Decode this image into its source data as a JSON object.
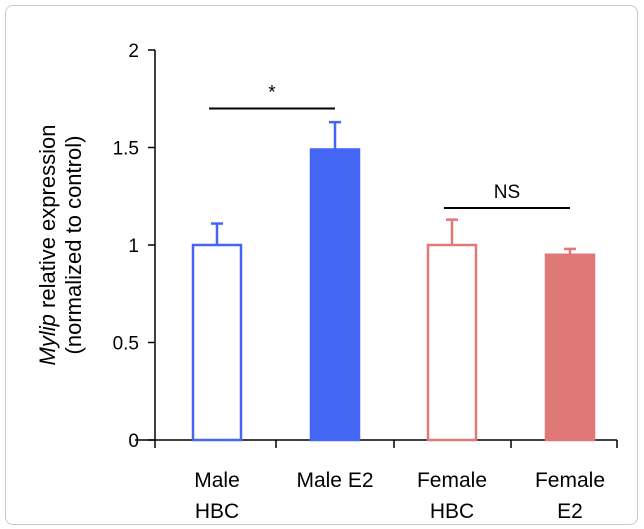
{
  "chart_data": {
    "type": "bar",
    "categories": [
      [
        "Male",
        "HBC"
      ],
      [
        "Male E2"
      ],
      [
        "Female",
        "HBC"
      ],
      [
        "Female",
        "E2"
      ]
    ],
    "values": [
      1.0,
      1.49,
      1.0,
      0.95
    ],
    "errors": [
      0.11,
      0.14,
      0.13,
      0.03
    ],
    "fills": [
      "#ffffff",
      "#4466f4",
      "#ffffff",
      "#e07878"
    ],
    "strokes": [
      "#4466f4",
      "#4466f4",
      "#e07878",
      "#e07878"
    ],
    "ylabel_italic": "Mylip",
    "ylabel_rest": " relative expression",
    "ylabel_line2": "(normalized to control)",
    "ylim": [
      0,
      2
    ],
    "yticks": [
      0,
      0.5,
      1,
      1.5,
      2
    ],
    "ytick_labels": [
      "0",
      "0.5",
      "1",
      "1.5",
      "2"
    ],
    "comparisons": [
      {
        "from": 0,
        "to": 1,
        "label": "*",
        "y": 1.7
      },
      {
        "from": 2,
        "to": 3,
        "label": "NS",
        "y": 1.19
      }
    ],
    "grid": false,
    "legend": "none"
  }
}
